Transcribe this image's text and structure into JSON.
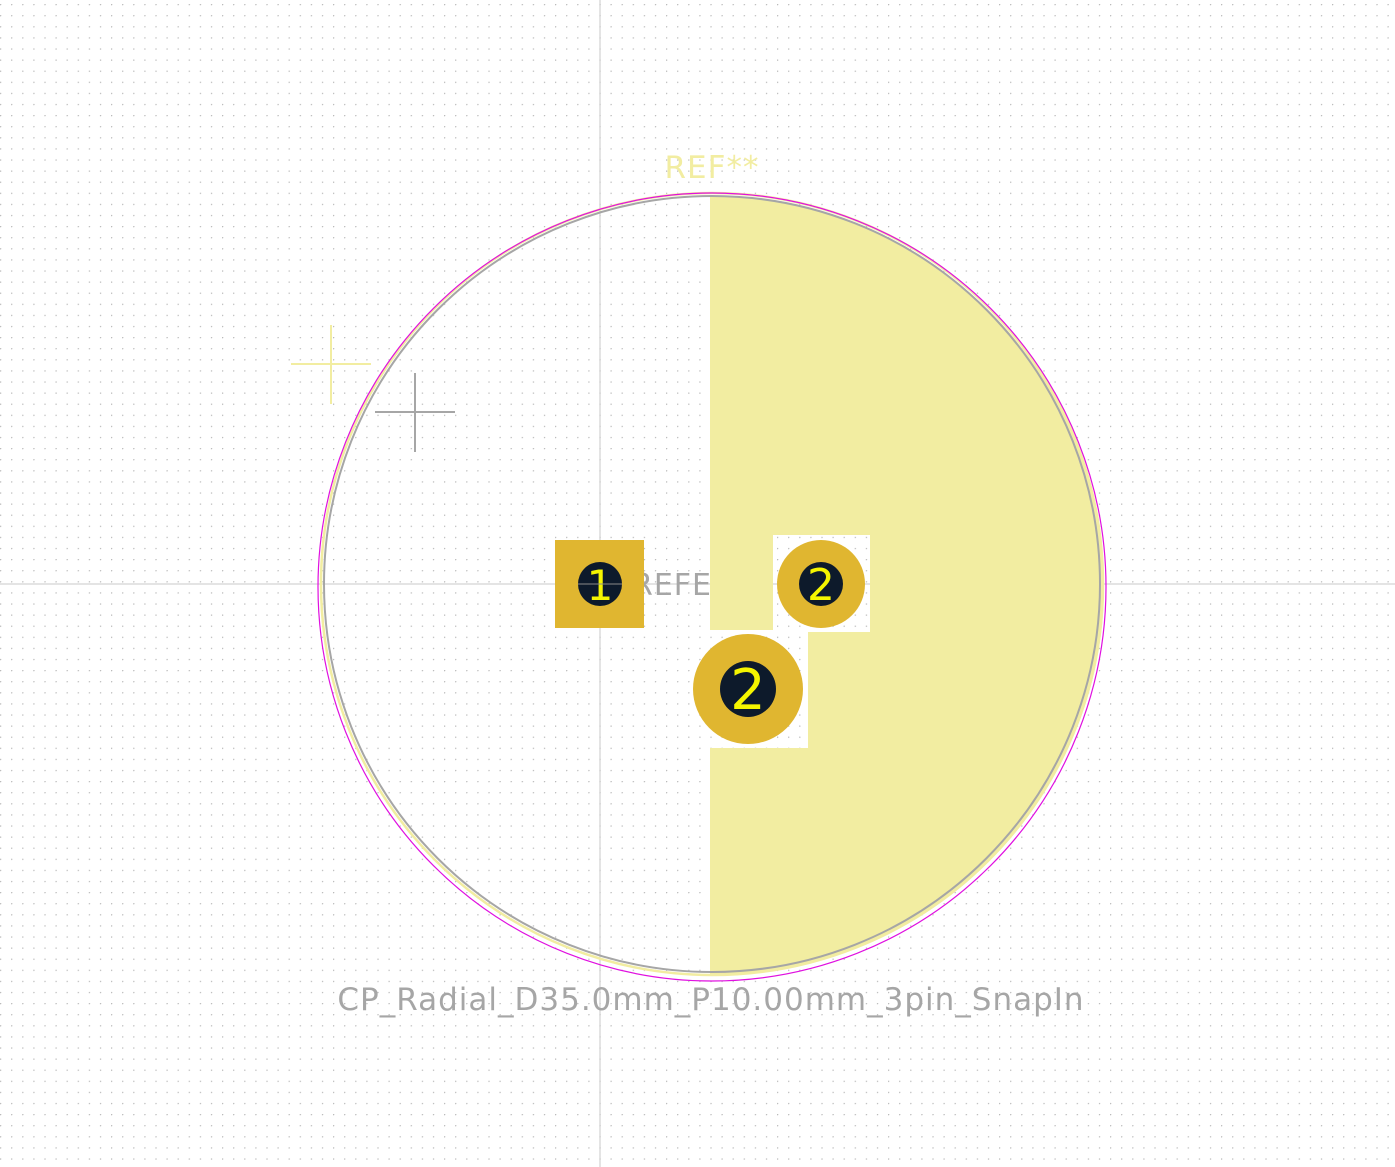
{
  "footprint": {
    "reference_silk": "REF**",
    "reference_fab": "REFE",
    "value": "CP_Radial_D35.0mm_P10.00mm_3pin_SnapIn"
  },
  "pads": [
    {
      "number": "1",
      "shape": "rect"
    },
    {
      "number": "2",
      "shape": "circle"
    },
    {
      "number": "2",
      "shape": "circle"
    }
  ],
  "colors": {
    "background": "#ffffff",
    "grid": "#9a9a9a",
    "silkscreen": "#f2eda1",
    "fab": "#a6a6a6",
    "courtyard": "#e010e0",
    "pad": "#e0b630",
    "drill": "#0d1a2b",
    "pad_number": "#f5f500"
  }
}
